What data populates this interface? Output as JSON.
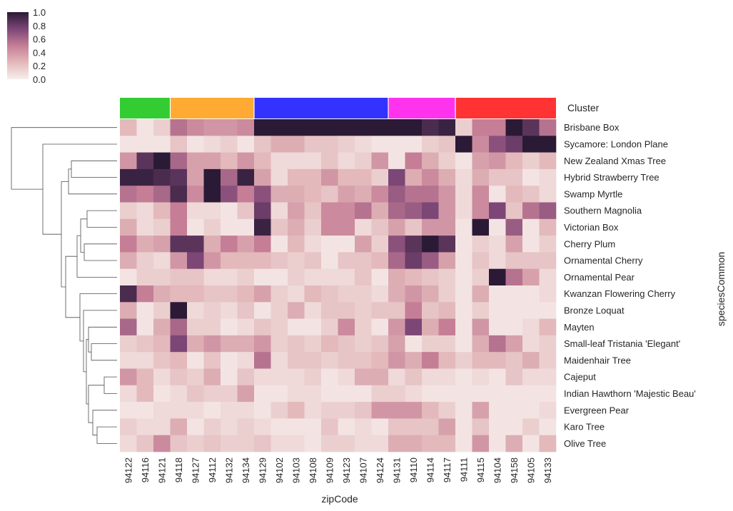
{
  "chart_data": {
    "type": "heatmap",
    "title": "",
    "xlabel": "zipCode",
    "ylabel": "speciesCommon",
    "colorbar": {
      "min": 0.0,
      "max": 1.0,
      "ticks": [
        "0.0",
        "0.2",
        "0.4",
        "0.6",
        "0.8",
        "1.0"
      ]
    },
    "cluster_label": "Cluster",
    "clusters": [
      {
        "color": "#33cc33",
        "columns": [
          "94122",
          "94116",
          "94121"
        ]
      },
      {
        "color": "#ffaa33",
        "columns": [
          "94118",
          "94127",
          "94112",
          "94132",
          "94134"
        ]
      },
      {
        "color": "#3333ff",
        "columns": [
          "94129",
          "94102",
          "94103",
          "94108",
          "94109",
          "94123",
          "94107",
          "94124"
        ]
      },
      {
        "color": "#ff33ee",
        "columns": [
          "94131",
          "94110",
          "94114",
          "94117"
        ]
      },
      {
        "color": "#ff3333",
        "columns": [
          "94111",
          "94115",
          "94104",
          "94158",
          "94105",
          "94133"
        ]
      }
    ],
    "columns": [
      "94122",
      "94116",
      "94121",
      "94118",
      "94127",
      "94112",
      "94132",
      "94134",
      "94129",
      "94102",
      "94103",
      "94108",
      "94109",
      "94123",
      "94107",
      "94124",
      "94131",
      "94110",
      "94114",
      "94117",
      "94111",
      "94115",
      "94104",
      "94158",
      "94105",
      "94133"
    ],
    "rows": [
      "Brisbane Box",
      "Sycamore: London Plane",
      "New Zealand Xmas Tree",
      "Hybrid Strawberry Tree",
      "Swamp Myrtle",
      "Southern Magnolia",
      "Victorian Box",
      "Cherry Plum",
      "Ornamental Cherry",
      "Ornamental Pear",
      "Kwanzan Flowering Cherry",
      "Bronze Loquat",
      "Mayten",
      "Small-leaf Tristania 'Elegant'",
      "Maidenhair Tree",
      "Cajeput",
      "Indian Hawthorn  'Majestic Beau'",
      "Evergreen Pear",
      "Karo Tree",
      "Olive Tree"
    ],
    "values": [
      [
        0.25,
        0.05,
        0.15,
        0.55,
        0.45,
        0.4,
        0.4,
        0.45,
        1.0,
        1.0,
        1.0,
        1.0,
        1.0,
        1.0,
        1.0,
        1.0,
        1.0,
        1.0,
        0.9,
        0.95,
        0.15,
        0.5,
        0.5,
        1.0,
        0.85,
        0.55
      ],
      [
        0.05,
        0.05,
        0.05,
        0.2,
        0.05,
        0.1,
        0.15,
        0.05,
        0.2,
        0.3,
        0.3,
        0.2,
        0.2,
        0.15,
        0.1,
        0.05,
        0.05,
        0.05,
        0.15,
        0.2,
        1.0,
        0.45,
        0.7,
        0.8,
        1.0,
        1.0
      ],
      [
        0.4,
        0.85,
        1.0,
        0.6,
        0.35,
        0.35,
        0.25,
        0.4,
        0.25,
        0.1,
        0.1,
        0.1,
        0.2,
        0.1,
        0.15,
        0.4,
        0.05,
        0.5,
        0.3,
        0.15,
        0.05,
        0.35,
        0.4,
        0.25,
        0.15,
        0.25
      ],
      [
        0.95,
        0.95,
        0.9,
        0.85,
        0.35,
        1.0,
        0.6,
        0.95,
        0.35,
        0.1,
        0.25,
        0.25,
        0.4,
        0.25,
        0.25,
        0.15,
        0.75,
        0.3,
        0.45,
        0.3,
        0.1,
        0.3,
        0.2,
        0.2,
        0.05,
        0.1
      ],
      [
        0.55,
        0.5,
        0.6,
        0.9,
        0.45,
        1.0,
        0.7,
        0.5,
        0.7,
        0.3,
        0.3,
        0.25,
        0.2,
        0.35,
        0.3,
        0.45,
        0.65,
        0.55,
        0.55,
        0.4,
        0.1,
        0.45,
        0.05,
        0.25,
        0.2,
        0.1
      ],
      [
        0.15,
        0.1,
        0.25,
        0.5,
        0.1,
        0.1,
        0.05,
        0.2,
        0.8,
        0.1,
        0.35,
        0.2,
        0.45,
        0.45,
        0.55,
        0.3,
        0.6,
        0.65,
        0.75,
        0.4,
        0.1,
        0.45,
        0.75,
        0.2,
        0.55,
        0.65
      ],
      [
        0.3,
        0.1,
        0.15,
        0.5,
        0.05,
        0.15,
        0.05,
        0.05,
        0.95,
        0.2,
        0.3,
        0.15,
        0.45,
        0.45,
        0.1,
        0.2,
        0.35,
        0.2,
        0.4,
        0.4,
        0.05,
        1.0,
        0.05,
        0.65,
        0.05,
        0.25
      ],
      [
        0.5,
        0.3,
        0.35,
        0.85,
        0.85,
        0.3,
        0.5,
        0.35,
        0.5,
        0.05,
        0.25,
        0.1,
        0.05,
        0.05,
        0.35,
        0.15,
        0.7,
        0.85,
        1.0,
        0.85,
        0.05,
        0.15,
        0.1,
        0.35,
        0.05,
        0.15
      ],
      [
        0.3,
        0.15,
        0.1,
        0.4,
        0.75,
        0.4,
        0.25,
        0.25,
        0.25,
        0.2,
        0.15,
        0.2,
        0.05,
        0.2,
        0.2,
        0.25,
        0.6,
        0.8,
        0.65,
        0.35,
        0.05,
        0.2,
        0.1,
        0.2,
        0.2,
        0.2
      ],
      [
        0.05,
        0.15,
        0.15,
        0.2,
        0.2,
        0.1,
        0.1,
        0.15,
        0.05,
        0.05,
        0.15,
        0.1,
        0.1,
        0.1,
        0.2,
        0.05,
        0.3,
        0.25,
        0.2,
        0.15,
        0.05,
        0.15,
        1.0,
        0.55,
        0.35,
        0.1
      ],
      [
        0.9,
        0.5,
        0.3,
        0.25,
        0.25,
        0.2,
        0.2,
        0.25,
        0.35,
        0.15,
        0.1,
        0.25,
        0.2,
        0.15,
        0.15,
        0.1,
        0.3,
        0.4,
        0.3,
        0.15,
        0.05,
        0.3,
        0.05,
        0.05,
        0.05,
        0.1
      ],
      [
        0.3,
        0.05,
        0.15,
        1.0,
        0.1,
        0.15,
        0.1,
        0.2,
        0.05,
        0.15,
        0.3,
        0.1,
        0.2,
        0.2,
        0.15,
        0.2,
        0.2,
        0.5,
        0.2,
        0.25,
        0.05,
        0.15,
        0.05,
        0.05,
        0.05,
        0.05
      ],
      [
        0.6,
        0.05,
        0.3,
        0.6,
        0.15,
        0.15,
        0.05,
        0.1,
        0.2,
        0.15,
        0.05,
        0.05,
        0.15,
        0.45,
        0.15,
        0.05,
        0.4,
        0.75,
        0.3,
        0.5,
        0.05,
        0.4,
        0.05,
        0.05,
        0.1,
        0.25
      ],
      [
        0.15,
        0.2,
        0.25,
        0.75,
        0.3,
        0.4,
        0.3,
        0.3,
        0.4,
        0.15,
        0.2,
        0.15,
        0.25,
        0.2,
        0.15,
        0.2,
        0.35,
        0.05,
        0.15,
        0.15,
        0.05,
        0.3,
        0.55,
        0.35,
        0.1,
        0.15
      ],
      [
        0.1,
        0.1,
        0.2,
        0.25,
        0.05,
        0.2,
        0.05,
        0.1,
        0.55,
        0.1,
        0.2,
        0.2,
        0.15,
        0.2,
        0.2,
        0.25,
        0.4,
        0.3,
        0.5,
        0.25,
        0.15,
        0.25,
        0.25,
        0.2,
        0.3,
        0.15
      ],
      [
        0.4,
        0.25,
        0.1,
        0.2,
        0.15,
        0.3,
        0.05,
        0.2,
        0.1,
        0.1,
        0.1,
        0.15,
        0.05,
        0.1,
        0.3,
        0.3,
        0.1,
        0.2,
        0.1,
        0.1,
        0.05,
        0.1,
        0.05,
        0.2,
        0.1,
        0.1
      ],
      [
        0.1,
        0.25,
        0.05,
        0.1,
        0.2,
        0.15,
        0.15,
        0.35,
        0.05,
        0.05,
        0.1,
        0.1,
        0.05,
        0.05,
        0.05,
        0.15,
        0.15,
        0.1,
        0.05,
        0.05,
        0.05,
        0.05,
        0.05,
        0.05,
        0.05,
        0.05
      ],
      [
        0.05,
        0.05,
        0.1,
        0.1,
        0.1,
        0.05,
        0.1,
        0.1,
        0.05,
        0.15,
        0.25,
        0.1,
        0.15,
        0.15,
        0.2,
        0.4,
        0.4,
        0.4,
        0.25,
        0.15,
        0.05,
        0.35,
        0.05,
        0.05,
        0.05,
        0.1
      ],
      [
        0.15,
        0.1,
        0.1,
        0.3,
        0.05,
        0.15,
        0.1,
        0.15,
        0.1,
        0.05,
        0.05,
        0.05,
        0.2,
        0.05,
        0.1,
        0.05,
        0.2,
        0.2,
        0.2,
        0.35,
        0.05,
        0.2,
        0.05,
        0.05,
        0.15,
        0.05
      ],
      [
        0.1,
        0.2,
        0.45,
        0.2,
        0.15,
        0.2,
        0.15,
        0.15,
        0.2,
        0.1,
        0.1,
        0.05,
        0.15,
        0.15,
        0.1,
        0.1,
        0.3,
        0.3,
        0.25,
        0.25,
        0.05,
        0.4,
        0.05,
        0.3,
        0.05,
        0.25
      ]
    ]
  }
}
